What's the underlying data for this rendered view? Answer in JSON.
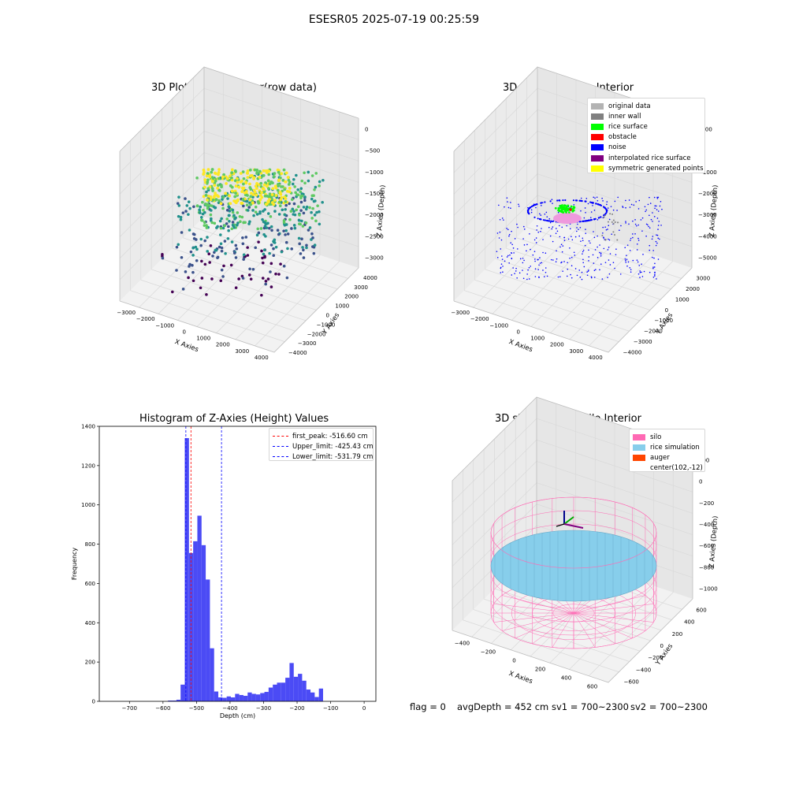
{
  "figure_title": "ESESR05 2025-07-19 00:25:59",
  "chart_data": [
    {
      "type": "scatter",
      "title": "3D Plot of Silo Interior(row data)",
      "xlabel": "X Axies",
      "ylabel": "Y Axies",
      "zlabel": "Z Axies (Depth)",
      "x_ticks": [
        "−3000",
        "−2000",
        "−1000",
        "0",
        "1000",
        "2000",
        "3000",
        "4000"
      ],
      "y_ticks": [
        "−4000",
        "−3000",
        "−2000",
        "−1000",
        "0",
        "1000",
        "2000",
        "3000",
        "4000"
      ],
      "z_ticks": [
        "−3000",
        "−2500",
        "−2000",
        "−1500",
        "−1000",
        "−500",
        "0"
      ],
      "colormap": [
        "#440154",
        "#3b528b",
        "#21918c",
        "#5ec962",
        "#fde725"
      ]
    },
    {
      "type": "scatter",
      "title": "3D classify of Silo Interior",
      "xlabel": "X Axies",
      "ylabel": "Y Axies",
      "zlabel": "Z Axies (Depth)",
      "x_ticks": [
        "−3000",
        "−2000",
        "−1000",
        "0",
        "1000",
        "2000",
        "3000",
        "4000"
      ],
      "y_ticks": [
        "−4000",
        "−3000",
        "−2000",
        "−1000",
        "0",
        "1000",
        "2000",
        "3000"
      ],
      "z_ticks": [
        "−5000",
        "−4000",
        "−3000",
        "−2000",
        "−1000",
        "0",
        "1000"
      ],
      "legend": [
        {
          "label": "original data",
          "color": "#b3b3b3"
        },
        {
          "label": "inner wall",
          "color": "#808080"
        },
        {
          "label": "rice surface",
          "color": "#00ff00"
        },
        {
          "label": "obstacle",
          "color": "#ff0000"
        },
        {
          "label": "noise",
          "color": "#0000ff"
        },
        {
          "label": "interpolated rice surface",
          "color": "#800080"
        },
        {
          "label": "symmetric generated points",
          "color": "#ffff00"
        }
      ]
    },
    {
      "type": "bar",
      "title": "Histogram of Z-Axies (Height) Values",
      "xlabel": "Depth (cm)",
      "ylabel": "Frequency",
      "xlim": [
        -790,
        35
      ],
      "ylim": [
        0,
        1400
      ],
      "x_ticks": [
        -700,
        -600,
        -500,
        -400,
        -300,
        -200,
        -100,
        0
      ],
      "y_ticks": [
        0,
        200,
        400,
        600,
        800,
        1000,
        1200,
        1400
      ],
      "bin_width": 12.5,
      "bar_color": "#4b4bf5",
      "bins": [
        {
          "x": -585,
          "v": 4
        },
        {
          "x": -572.5,
          "v": 4
        },
        {
          "x": -560,
          "v": 8
        },
        {
          "x": -547.5,
          "v": 85
        },
        {
          "x": -535,
          "v": 1340
        },
        {
          "x": -522.5,
          "v": 755
        },
        {
          "x": -510,
          "v": 815
        },
        {
          "x": -497.5,
          "v": 945
        },
        {
          "x": -485,
          "v": 795
        },
        {
          "x": -472.5,
          "v": 620
        },
        {
          "x": -460,
          "v": 270
        },
        {
          "x": -447.5,
          "v": 50
        },
        {
          "x": -435,
          "v": 20
        },
        {
          "x": -422.5,
          "v": 18
        },
        {
          "x": -410,
          "v": 25
        },
        {
          "x": -397.5,
          "v": 20
        },
        {
          "x": -385,
          "v": 38
        },
        {
          "x": -372.5,
          "v": 32
        },
        {
          "x": -360,
          "v": 28
        },
        {
          "x": -347.5,
          "v": 45
        },
        {
          "x": -335,
          "v": 38
        },
        {
          "x": -322.5,
          "v": 35
        },
        {
          "x": -310,
          "v": 42
        },
        {
          "x": -297.5,
          "v": 48
        },
        {
          "x": -285,
          "v": 70
        },
        {
          "x": -272.5,
          "v": 85
        },
        {
          "x": -260,
          "v": 95
        },
        {
          "x": -247.5,
          "v": 95
        },
        {
          "x": -235,
          "v": 120
        },
        {
          "x": -222.5,
          "v": 195
        },
        {
          "x": -210,
          "v": 125
        },
        {
          "x": -197.5,
          "v": 140
        },
        {
          "x": -185,
          "v": 105
        },
        {
          "x": -172.5,
          "v": 60
        },
        {
          "x": -160,
          "v": 45
        },
        {
          "x": -147.5,
          "v": 22
        },
        {
          "x": -135,
          "v": 65
        }
      ],
      "bins_note": "",
      "vlines": [
        {
          "label": "first_peak: -516.60 cm",
          "x": -516.6,
          "color": "#ff0000"
        },
        {
          "label": "Upper_limit: -425.43 cm",
          "x": -425.43,
          "color": "#0000ff"
        },
        {
          "label": "Lower_limit: -531.79 cm",
          "x": -531.79,
          "color": "#0000ff"
        }
      ]
    },
    {
      "type": "surface",
      "title": "3D simulation of Silo Interior",
      "xlabel": "X Axies",
      "ylabel": "Y Axies",
      "zlabel": "Z Axies (Depth)",
      "x_ticks": [
        "−400",
        "−200",
        "0",
        "200",
        "400",
        "600"
      ],
      "y_ticks": [
        "−600",
        "−400",
        "−200",
        "0",
        "200",
        "400",
        "600"
      ],
      "z_ticks": [
        "−1000",
        "−800",
        "−600",
        "−400",
        "−200",
        "0",
        "200"
      ],
      "legend": [
        {
          "label": "silo",
          "color": "#ff69b4"
        },
        {
          "label": "rice simulation",
          "color": "#87ceeb"
        },
        {
          "label": "auger",
          "color": "#ff4500"
        },
        {
          "label": "center(102,-12)",
          "color": ""
        }
      ]
    }
  ],
  "footer": {
    "flag": "flag = 0",
    "avg": "avgDepth = 452 cm",
    "sv1": "sv1 = 700~2300",
    "sv2": "sv2 = 700~2300"
  }
}
